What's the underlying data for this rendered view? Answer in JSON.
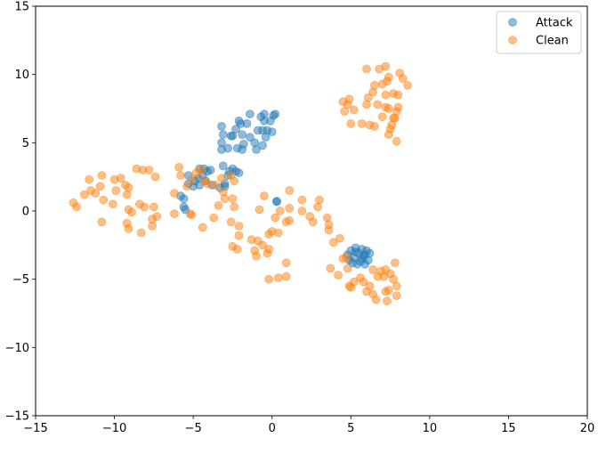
{
  "chart_data": {
    "type": "scatter",
    "title": "",
    "xlabel": "",
    "ylabel": "",
    "xlim": [
      -15,
      20
    ],
    "ylim": [
      -15,
      15
    ],
    "xticks": [
      -15,
      -10,
      -5,
      0,
      5,
      10,
      15,
      20
    ],
    "yticks": [
      -15,
      -10,
      -5,
      0,
      5,
      10,
      15
    ],
    "grid": false,
    "legend": {
      "position": "top-right"
    },
    "series": [
      {
        "name": "Attack",
        "color": "#1f77b4",
        "points": [
          [
            -3.2,
            6.2
          ],
          [
            -3.1,
            5.6
          ],
          [
            -3.2,
            5.0
          ],
          [
            -3.2,
            4.5
          ],
          [
            -2.8,
            4.6
          ],
          [
            -2.6,
            5.5
          ],
          [
            -2.5,
            5.5
          ],
          [
            -2.3,
            6.0
          ],
          [
            -2.1,
            6.6
          ],
          [
            -2.0,
            6.4
          ],
          [
            -1.9,
            5.6
          ],
          [
            -1.8,
            4.9
          ],
          [
            -1.9,
            4.5
          ],
          [
            -2.2,
            4.6
          ],
          [
            -1.6,
            6.4
          ],
          [
            -1.4,
            7.1
          ],
          [
            -1.4,
            5.4
          ],
          [
            -1.1,
            5.0
          ],
          [
            -1.0,
            4.5
          ],
          [
            -0.9,
            5.9
          ],
          [
            -0.6,
            4.8
          ],
          [
            -0.6,
            5.9
          ],
          [
            -0.5,
            6.6
          ],
          [
            -0.5,
            7.1
          ],
          [
            -0.4,
            5.4
          ],
          [
            -0.3,
            5.9
          ],
          [
            -0.1,
            6.6
          ],
          [
            0.0,
            5.8
          ],
          [
            0.1,
            7.0
          ],
          [
            0.2,
            7.1
          ],
          [
            -0.7,
            6.9
          ],
          [
            -2.5,
            3.1
          ],
          [
            -2.3,
            2.9
          ],
          [
            -2.1,
            2.8
          ],
          [
            -2.7,
            2.9
          ],
          [
            -2.8,
            2.6
          ],
          [
            -3.0,
            2.0
          ],
          [
            -3.1,
            3.3
          ],
          [
            -3.3,
            1.7
          ],
          [
            -3.0,
            1.8
          ],
          [
            -3.8,
            1.9
          ],
          [
            -3.9,
            3.0
          ],
          [
            -4.1,
            2.9
          ],
          [
            -4.3,
            3.1
          ],
          [
            -4.4,
            2.6
          ],
          [
            -4.6,
            3.1
          ],
          [
            -4.7,
            2.4
          ],
          [
            -4.9,
            2.2
          ],
          [
            -5.0,
            1.8
          ],
          [
            -5.3,
            2.0
          ],
          [
            -5.3,
            2.6
          ],
          [
            -4.6,
            1.9
          ],
          [
            -4.2,
            2.2
          ],
          [
            -5.6,
            0.9
          ],
          [
            -5.8,
            1.1
          ],
          [
            -5.6,
            0.3
          ],
          [
            -5.5,
            0.1
          ],
          [
            0.3,
            0.7
          ],
          [
            0.3,
            0.7
          ],
          [
            4.8,
            -3.2
          ],
          [
            4.9,
            -3.6
          ],
          [
            5.0,
            -2.9
          ],
          [
            5.1,
            -3.8
          ],
          [
            5.2,
            -3.4
          ],
          [
            5.3,
            -2.7
          ],
          [
            5.4,
            -3.9
          ],
          [
            5.5,
            -3.1
          ],
          [
            5.6,
            -3.7
          ],
          [
            5.7,
            -2.8
          ],
          [
            5.8,
            -3.3
          ],
          [
            5.9,
            -3.9
          ],
          [
            6.0,
            -2.9
          ],
          [
            6.1,
            -3.6
          ],
          [
            6.2,
            -3.1
          ],
          [
            5.3,
            -3.0
          ],
          [
            5.7,
            -3.5
          ],
          [
            5.9,
            -3.2
          ]
        ]
      },
      {
        "name": "Clean",
        "color": "#ff7f0e",
        "points": [
          [
            6.0,
            10.4
          ],
          [
            6.5,
            9.2
          ],
          [
            6.8,
            10.4
          ],
          [
            7.2,
            10.6
          ],
          [
            7.0,
            9.3
          ],
          [
            7.3,
            9.5
          ],
          [
            7.4,
            9.8
          ],
          [
            7.2,
            8.5
          ],
          [
            7.7,
            8.6
          ],
          [
            8.1,
            10.1
          ],
          [
            8.3,
            9.7
          ],
          [
            8.6,
            9.2
          ],
          [
            8.0,
            8.5
          ],
          [
            6.4,
            8.7
          ],
          [
            6.1,
            8.3
          ],
          [
            6.0,
            7.8
          ],
          [
            6.7,
            7.8
          ],
          [
            7.2,
            7.6
          ],
          [
            7.4,
            7.5
          ],
          [
            7.9,
            7.3
          ],
          [
            8.0,
            7.6
          ],
          [
            4.5,
            8.0
          ],
          [
            4.8,
            7.8
          ],
          [
            4.9,
            8.2
          ],
          [
            4.6,
            7.3
          ],
          [
            5.2,
            7.4
          ],
          [
            7.0,
            6.9
          ],
          [
            7.8,
            6.8
          ],
          [
            7.6,
            6.3
          ],
          [
            7.5,
            6.0
          ],
          [
            7.4,
            5.6
          ],
          [
            7.9,
            5.1
          ],
          [
            6.5,
            6.2
          ],
          [
            6.2,
            6.3
          ],
          [
            5.0,
            6.4
          ],
          [
            5.7,
            6.4
          ],
          [
            7.7,
            6.8
          ],
          [
            -12.6,
            0.6
          ],
          [
            -12.4,
            0.3
          ],
          [
            -11.9,
            1.2
          ],
          [
            -11.6,
            2.3
          ],
          [
            -11.5,
            1.5
          ],
          [
            -11.2,
            1.3
          ],
          [
            -10.8,
            2.6
          ],
          [
            -10.9,
            1.8
          ],
          [
            -10.7,
            0.8
          ],
          [
            -10.8,
            -0.8
          ],
          [
            -10.1,
            0.5
          ],
          [
            -10.0,
            2.3
          ],
          [
            -9.9,
            1.5
          ],
          [
            -9.6,
            2.4
          ],
          [
            -9.3,
            1.9
          ],
          [
            -9.1,
            1.7
          ],
          [
            -9.2,
            1.2
          ],
          [
            -9.1,
            0.1
          ],
          [
            -8.9,
            -0.1
          ],
          [
            -9.2,
            -0.9
          ],
          [
            -9.1,
            -1.3
          ],
          [
            -8.6,
            3.1
          ],
          [
            -8.2,
            3.0
          ],
          [
            -7.8,
            3.0
          ],
          [
            -8.4,
            0.5
          ],
          [
            -8.1,
            0.3
          ],
          [
            -8.3,
            -1.6
          ],
          [
            -7.6,
            -0.6
          ],
          [
            -7.6,
            -1.1
          ],
          [
            -7.3,
            -0.4
          ],
          [
            -7.5,
            0.3
          ],
          [
            -7.4,
            2.5
          ],
          [
            -6.2,
            1.3
          ],
          [
            -6.2,
            -0.2
          ],
          [
            -5.9,
            3.2
          ],
          [
            -5.8,
            2.6
          ],
          [
            -5.4,
            1.8
          ],
          [
            -5.1,
            2.3
          ],
          [
            -4.8,
            2.8
          ],
          [
            -4.5,
            3.0
          ],
          [
            -4.3,
            2.2
          ],
          [
            -4.1,
            2.0
          ],
          [
            -3.6,
            1.9
          ],
          [
            -3.2,
            2.4
          ],
          [
            -3.1,
            1.4
          ],
          [
            -3.0,
            0.9
          ],
          [
            -2.6,
            2.6
          ],
          [
            -2.4,
            2.2
          ],
          [
            -2.5,
            0.9
          ],
          [
            -2.4,
            0.3
          ],
          [
            -2.6,
            -0.8
          ],
          [
            -3.4,
            0.4
          ],
          [
            -3.7,
            -0.5
          ],
          [
            -4.4,
            -1.2
          ],
          [
            -5.1,
            -0.3
          ],
          [
            -5.2,
            -0.2
          ],
          [
            -2.1,
            -1.1
          ],
          [
            -2.1,
            -1.8
          ],
          [
            -2.2,
            -2.8
          ],
          [
            -2.5,
            -2.6
          ],
          [
            -1.3,
            -2.1
          ],
          [
            -0.9,
            -2.2
          ],
          [
            -1.1,
            -2.9
          ],
          [
            -1.0,
            -3.3
          ],
          [
            -0.6,
            -2.5
          ],
          [
            -0.2,
            -1.7
          ],
          [
            -0.3,
            -3.1
          ],
          [
            -0.2,
            -2.8
          ],
          [
            0.0,
            -1.5
          ],
          [
            0.4,
            -1.6
          ],
          [
            0.2,
            -0.5
          ],
          [
            0.5,
            0.0
          ],
          [
            -0.5,
            1.1
          ],
          [
            -0.8,
            0.1
          ],
          [
            0.9,
            -0.8
          ],
          [
            1.1,
            0.2
          ],
          [
            1.1,
            -0.7
          ],
          [
            1.1,
            1.5
          ],
          [
            0.9,
            -3.8
          ],
          [
            0.9,
            -4.8
          ],
          [
            0.4,
            -4.9
          ],
          [
            -0.2,
            -5.0
          ],
          [
            1.9,
            0.8
          ],
          [
            1.9,
            0.0
          ],
          [
            2.4,
            -0.4
          ],
          [
            2.6,
            -0.8
          ],
          [
            2.9,
            0.3
          ],
          [
            3.0,
            0.8
          ],
          [
            3.5,
            -0.5
          ],
          [
            3.6,
            -1.0
          ],
          [
            3.6,
            -1.4
          ],
          [
            3.9,
            -2.3
          ],
          [
            4.3,
            -2.0
          ],
          [
            3.7,
            -4.2
          ],
          [
            4.2,
            -4.7
          ],
          [
            4.5,
            -3.5
          ],
          [
            4.7,
            -3.4
          ],
          [
            4.8,
            -4.2
          ],
          [
            4.9,
            -5.5
          ],
          [
            5.0,
            -5.6
          ],
          [
            5.6,
            -4.9
          ],
          [
            5.8,
            -5.2
          ],
          [
            6.0,
            -5.9
          ],
          [
            6.2,
            -5.5
          ],
          [
            6.4,
            -4.3
          ],
          [
            6.4,
            -6.1
          ],
          [
            6.6,
            -6.5
          ],
          [
            6.7,
            -4.8
          ],
          [
            6.9,
            -4.4
          ],
          [
            7.1,
            -4.8
          ],
          [
            7.2,
            -5.9
          ],
          [
            7.3,
            -6.6
          ],
          [
            7.5,
            -4.6
          ],
          [
            7.7,
            -5.0
          ],
          [
            7.8,
            -3.8
          ],
          [
            7.9,
            -5.5
          ],
          [
            7.9,
            -6.2
          ],
          [
            7.2,
            -4.3
          ],
          [
            7.4,
            -5.8
          ],
          [
            5.2,
            -5.2
          ]
        ]
      }
    ]
  }
}
